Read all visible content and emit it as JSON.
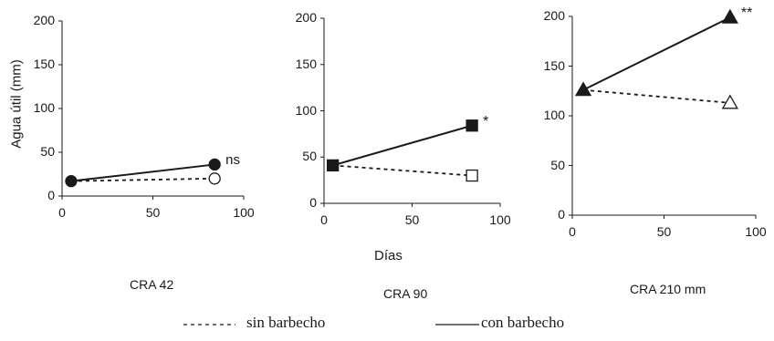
{
  "chart_data": [
    {
      "type": "line",
      "title": "CRA 42",
      "ylabel": "Agua útil (mm)",
      "xlabel": "",
      "xlim": [
        0,
        100
      ],
      "ylim": [
        0,
        200
      ],
      "xticks": [
        "0",
        "50",
        "100"
      ],
      "yticks": [
        "0",
        "50",
        "100",
        "150",
        "200"
      ],
      "marker": "circle",
      "annotation": "ns",
      "series": [
        {
          "name": "sin barbecho",
          "style": "dashed",
          "filled_end": false,
          "x": [
            5,
            84
          ],
          "y": [
            17,
            20
          ]
        },
        {
          "name": "con barbecho",
          "style": "solid",
          "filled_end": true,
          "x": [
            5,
            84
          ],
          "y": [
            17,
            36
          ]
        }
      ]
    },
    {
      "type": "line",
      "title": "CRA 90",
      "ylabel": "",
      "xlabel": "Días",
      "xlim": [
        0,
        100
      ],
      "ylim": [
        0,
        200
      ],
      "xticks": [
        "0",
        "50",
        "100"
      ],
      "yticks": [
        "0",
        "50",
        "100",
        "150",
        "200"
      ],
      "marker": "square",
      "annotation": "*",
      "series": [
        {
          "name": "sin barbecho",
          "style": "dashed",
          "filled_end": false,
          "x": [
            5,
            84
          ],
          "y": [
            41,
            30
          ]
        },
        {
          "name": "con barbecho",
          "style": "solid",
          "filled_end": true,
          "x": [
            5,
            84
          ],
          "y": [
            41,
            84
          ]
        }
      ]
    },
    {
      "type": "line",
      "title": "CRA 210 mm",
      "ylabel": "",
      "xlabel": "",
      "xlim": [
        0,
        100
      ],
      "ylim": [
        0,
        200
      ],
      "xticks": [
        "0",
        "50",
        "100"
      ],
      "yticks": [
        "0",
        "50",
        "100",
        "150",
        "200"
      ],
      "marker": "triangle",
      "annotation": "**",
      "series": [
        {
          "name": "sin barbecho",
          "style": "dashed",
          "filled_end": false,
          "x": [
            6,
            86
          ],
          "y": [
            126,
            113
          ]
        },
        {
          "name": "con barbecho",
          "style": "solid",
          "filled_end": true,
          "x": [
            6,
            86
          ],
          "y": [
            126,
            199
          ]
        }
      ]
    }
  ],
  "legend": {
    "items": [
      {
        "label": "sin barbecho",
        "style": "dashed"
      },
      {
        "label": "con barbecho",
        "style": "solid"
      }
    ],
    "placement": "bottom-center"
  },
  "colors": {
    "ink": "#1a1a1a",
    "background": "#ffffff"
  }
}
